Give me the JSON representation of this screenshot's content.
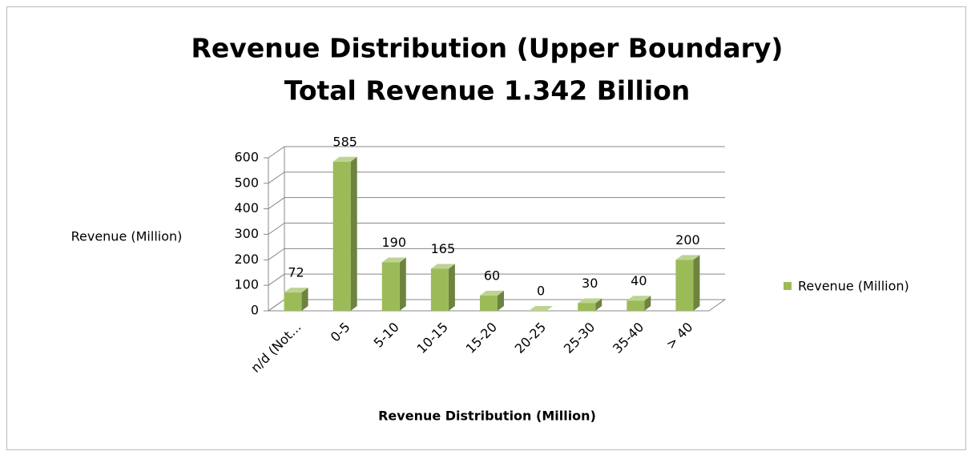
{
  "chart_data": {
    "type": "bar3d",
    "title": "Revenue Distribution (Upper Boundary)",
    "subtitle": "Total Revenue 1.342 Billion",
    "x_label": "Revenue Distribution (Million)",
    "y_label": "Revenue (Million)",
    "categories": [
      "n/d (Not...",
      "0-5",
      "5-10",
      "10-15",
      "15-20",
      "20-25",
      "25-30",
      "35-40",
      "> 40"
    ],
    "series": [
      {
        "name": "Revenue (Million)",
        "color": "#9bbb59",
        "values": [
          72,
          585,
          190,
          165,
          60,
          0,
          30,
          40,
          200
        ]
      }
    ],
    "ylim": [
      0,
      600
    ],
    "yticks": [
      0,
      100,
      200,
      300,
      400,
      500,
      600
    ],
    "grid": true,
    "legend": "right"
  }
}
